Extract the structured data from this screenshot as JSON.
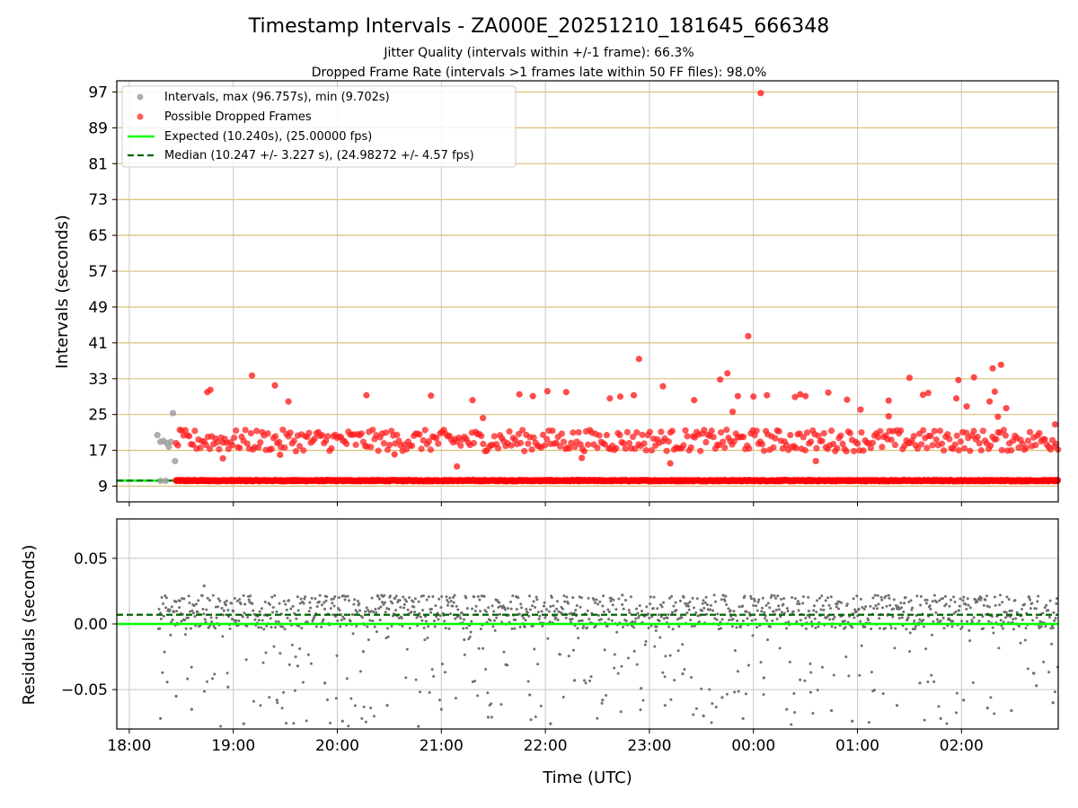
{
  "figure": {
    "title": "Timestamp Intervals - ZA000E_20251210_181645_666348",
    "subtitle_1": "Jitter Quality (intervals within +/-1 frame): 66.3%",
    "subtitle_2": "Dropped Frame Rate (intervals >1 frames late within 50 FF files): 98.0%",
    "xlabel": "Time (UTC)"
  },
  "chart_data": [
    {
      "type": "scatter",
      "panel": "intervals",
      "ylabel": "Intervals (seconds)",
      "ylim": [
        5.5,
        99.5
      ],
      "yticks": [
        9,
        17,
        25,
        33,
        41,
        49,
        57,
        65,
        73,
        81,
        89,
        97
      ],
      "xlim_hours": [
        17.88,
        26.93
      ],
      "xtick_hours": [
        18,
        19,
        20,
        21,
        22,
        23,
        24,
        25,
        26
      ],
      "xtick_labels": [
        "18:00",
        "19:00",
        "20:00",
        "21:00",
        "22:00",
        "23:00",
        "00:00",
        "01:00",
        "02:00"
      ],
      "legend": {
        "location": "upper-left",
        "entries": [
          {
            "label": "Intervals, max (96.757s), min (9.702s)",
            "kind": "marker",
            "color": "#a0a0a0"
          },
          {
            "label": "Possible Dropped Frames",
            "kind": "marker",
            "color": "#ff4040"
          },
          {
            "label": "Expected (10.240s), (25.00000 fps)",
            "kind": "line",
            "color": "#00ff00"
          },
          {
            "label": "Median (10.247 +/- 3.227 s), (24.98272 +/- 4.57 fps)",
            "kind": "dashed-line",
            "color": "#006400"
          }
        ]
      },
      "expected_interval": 10.24,
      "median_interval": 10.247,
      "series": [
        {
          "name": "Intervals",
          "color": "#a0a0a0",
          "x_hours": [
            18.27,
            18.3,
            18.33,
            18.36,
            18.38,
            18.4,
            18.42,
            18.44,
            18.3,
            18.35
          ],
          "y": [
            20.4,
            18.9,
            19.1,
            18.6,
            17.8,
            18.9,
            25.3,
            14.6,
            10.2,
            10.2
          ]
        },
        {
          "name": "Possible Dropped Frames",
          "color": "#ff0000",
          "x_hours": [
            18.75,
            18.78,
            19.18,
            19.4,
            19.53,
            20.28,
            20.9,
            21.3,
            21.4,
            21.75,
            21.88,
            22.02,
            22.2,
            22.62,
            22.72,
            22.85,
            22.9,
            23.13,
            23.43,
            23.68,
            23.75,
            23.8,
            23.85,
            23.95,
            24.0,
            24.13,
            24.4,
            24.45,
            24.5,
            24.72,
            24.9,
            25.03,
            25.3,
            25.5,
            25.63,
            25.68,
            25.95,
            26.05,
            26.12,
            26.27,
            26.3,
            26.32,
            26.38,
            26.43,
            24.07,
            25.97,
            26.35,
            26.9,
            25.3,
            21.15,
            23.2,
            24.6,
            22.35,
            18.9,
            19.45,
            20.55
          ],
          "y": [
            30.0,
            30.5,
            33.7,
            31.5,
            27.9,
            29.3,
            29.2,
            28.2,
            24.2,
            29.5,
            29.1,
            30.2,
            30.0,
            28.6,
            29.0,
            29.3,
            37.4,
            31.3,
            28.2,
            32.8,
            34.2,
            25.6,
            29.1,
            42.5,
            29.0,
            29.3,
            28.9,
            29.5,
            29.1,
            29.9,
            28.3,
            26.1,
            28.1,
            33.2,
            29.4,
            29.8,
            28.6,
            26.8,
            33.3,
            27.9,
            35.3,
            30.1,
            36.1,
            26.4,
            96.757,
            32.7,
            24.5,
            22.8,
            24.6,
            13.4,
            14.1,
            14.6,
            15.3,
            15.2,
            16.0,
            16.1
          ]
        }
      ]
    },
    {
      "type": "scatter",
      "panel": "residuals",
      "ylabel": "Residuals (seconds)",
      "ylim": [
        -0.08,
        0.08
      ],
      "yticks": [
        -0.05,
        0.0,
        0.05
      ],
      "ytick_labels": [
        "−0.05",
        "0.00",
        "0.05"
      ],
      "expected_residual": 0.0,
      "median_residual": 0.007,
      "series": [
        {
          "name": "Residuals",
          "color": "#707070",
          "x_hours": [
            18.3,
            18.45,
            18.6,
            18.72,
            18.95,
            19.1,
            19.42,
            19.62,
            19.88,
            20.05,
            20.25,
            20.48,
            20.6,
            20.78,
            21.0,
            21.22,
            21.45,
            21.62,
            21.85,
            22.05,
            22.28,
            22.55,
            22.74,
            22.92,
            23.15,
            23.32,
            23.52,
            23.7,
            23.9,
            24.1,
            24.32,
            24.55,
            24.75,
            24.95,
            25.15,
            25.38,
            25.6,
            25.8,
            26.02,
            26.25,
            26.48,
            26.72,
            26.88
          ],
          "y": [
            -0.072,
            -0.055,
            -0.065,
            0.029,
            -0.048,
            -0.076,
            -0.058,
            -0.032,
            -0.045,
            -0.074,
            -0.021,
            -0.062,
            0.018,
            -0.078,
            -0.065,
            -0.012,
            -0.071,
            -0.031,
            -0.054,
            -0.076,
            -0.043,
            -0.058,
            0.022,
            -0.049,
            -0.062,
            -0.038,
            -0.07,
            -0.056,
            -0.072,
            -0.041,
            -0.065,
            -0.052,
            -0.066,
            -0.074,
            -0.051,
            -0.062,
            -0.045,
            -0.072,
            -0.058,
            -0.064,
            -0.066,
            -0.047,
            -0.06
          ]
        }
      ]
    }
  ]
}
